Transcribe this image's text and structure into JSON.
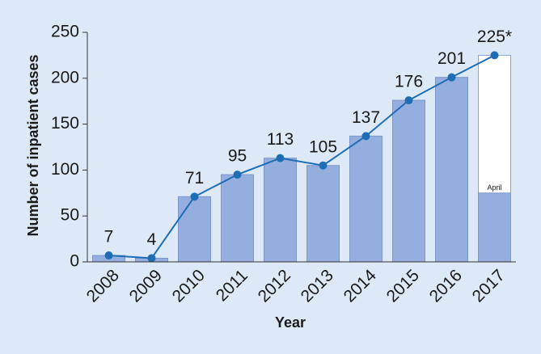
{
  "chart_data": {
    "type": "bar-line",
    "x_label": "Year",
    "y_label": "Number of inpatient cases",
    "categories": [
      "2008",
      "2009",
      "2010",
      "2011",
      "2012",
      "2013",
      "2014",
      "2015",
      "2016",
      "2017"
    ],
    "bars": {
      "color": "#94aee0",
      "values": [
        7,
        4,
        71,
        95,
        113,
        105,
        137,
        176,
        201,
        75
      ],
      "bar_labels": [
        null,
        null,
        null,
        null,
        null,
        null,
        null,
        null,
        null,
        "April"
      ]
    },
    "projection": {
      "color": "#ffffff",
      "values": [
        null,
        null,
        null,
        null,
        null,
        null,
        null,
        null,
        null,
        225
      ]
    },
    "line": {
      "color": "#1f6eb5",
      "values": [
        7,
        4,
        71,
        95,
        113,
        105,
        137,
        176,
        201,
        225
      ],
      "value_labels": [
        "7",
        "4",
        "71",
        "95",
        "113",
        "105",
        "137",
        "176",
        "201",
        "225*"
      ]
    },
    "ylim": [
      0,
      250
    ],
    "yticks": [
      0,
      50,
      100,
      150,
      200,
      250
    ]
  }
}
